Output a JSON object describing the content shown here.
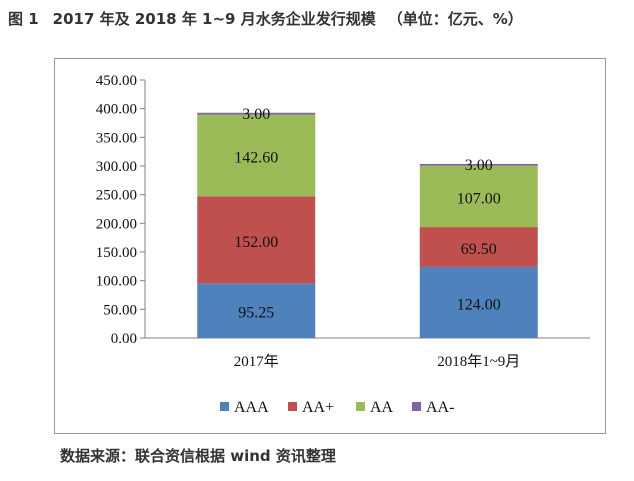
{
  "caption": {
    "figure_label": "图 1",
    "title": "2017 年及 2018 年 1~9 月水务企业发行规模",
    "unit": "（单位：亿元、%）"
  },
  "source": "数据来源：联合资信根据 wind 资讯整理",
  "chart_data": {
    "type": "bar",
    "stacked": true,
    "title": "",
    "xlabel": "",
    "ylabel": "",
    "ylim": [
      0,
      450
    ],
    "y_ticks": [
      "0.00",
      "50.00",
      "100.00",
      "150.00",
      "200.00",
      "250.00",
      "300.00",
      "350.00",
      "400.00",
      "450.00"
    ],
    "grid": false,
    "legend_position": "bottom",
    "categories": [
      "2017年",
      "2018年1~9月"
    ],
    "series": [
      {
        "name": "AAA",
        "values": [
          95.25,
          124.0
        ],
        "labels": [
          "95.25",
          "124.00"
        ],
        "color": "#4f81bd"
      },
      {
        "name": "AA+",
        "values": [
          152.0,
          69.5
        ],
        "labels": [
          "152.00",
          "69.50"
        ],
        "color": "#c0504d"
      },
      {
        "name": "AA",
        "values": [
          142.6,
          107.0
        ],
        "labels": [
          "142.60",
          "107.00"
        ],
        "color": "#9bbb59"
      },
      {
        "name": "AA-",
        "values": [
          3.0,
          3.0
        ],
        "labels": [
          "3.00",
          "3.00"
        ],
        "color": "#8064a2"
      }
    ]
  }
}
